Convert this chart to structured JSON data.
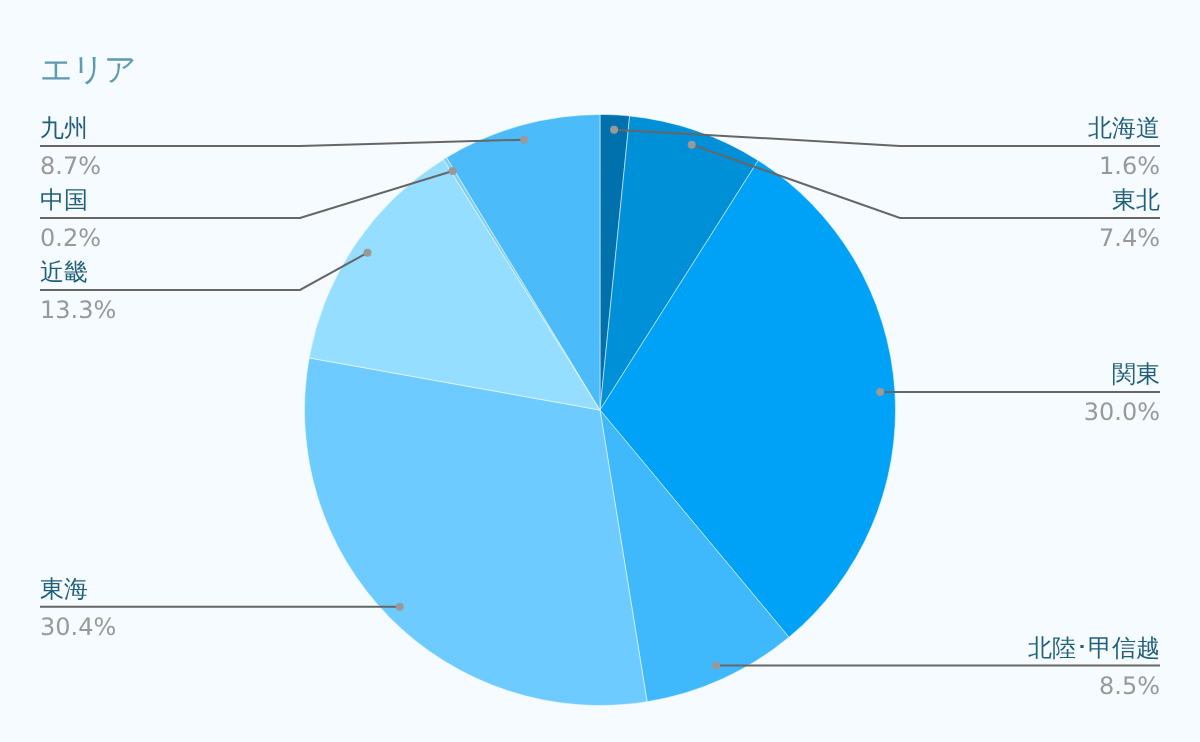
{
  "chart_data": {
    "type": "pie",
    "title": "エリア",
    "categories": [
      "北海道",
      "東北",
      "関東",
      "北陸･甲信越",
      "東海",
      "近畿",
      "中国",
      "九州"
    ],
    "values": [
      1.6,
      7.4,
      30.0,
      8.5,
      30.4,
      13.3,
      0.2,
      8.7
    ],
    "value_labels": [
      "1.6%",
      "7.4%",
      "30.0%",
      "8.5%",
      "30.4%",
      "13.3%",
      "0.2%",
      "8.7%"
    ],
    "colors": [
      "#0071ad",
      "#0090d8",
      "#00a2f7",
      "#40b9fc",
      "#6ecbff",
      "#96deff",
      "#7fcff2",
      "#4bbcf9"
    ],
    "legend": false
  }
}
